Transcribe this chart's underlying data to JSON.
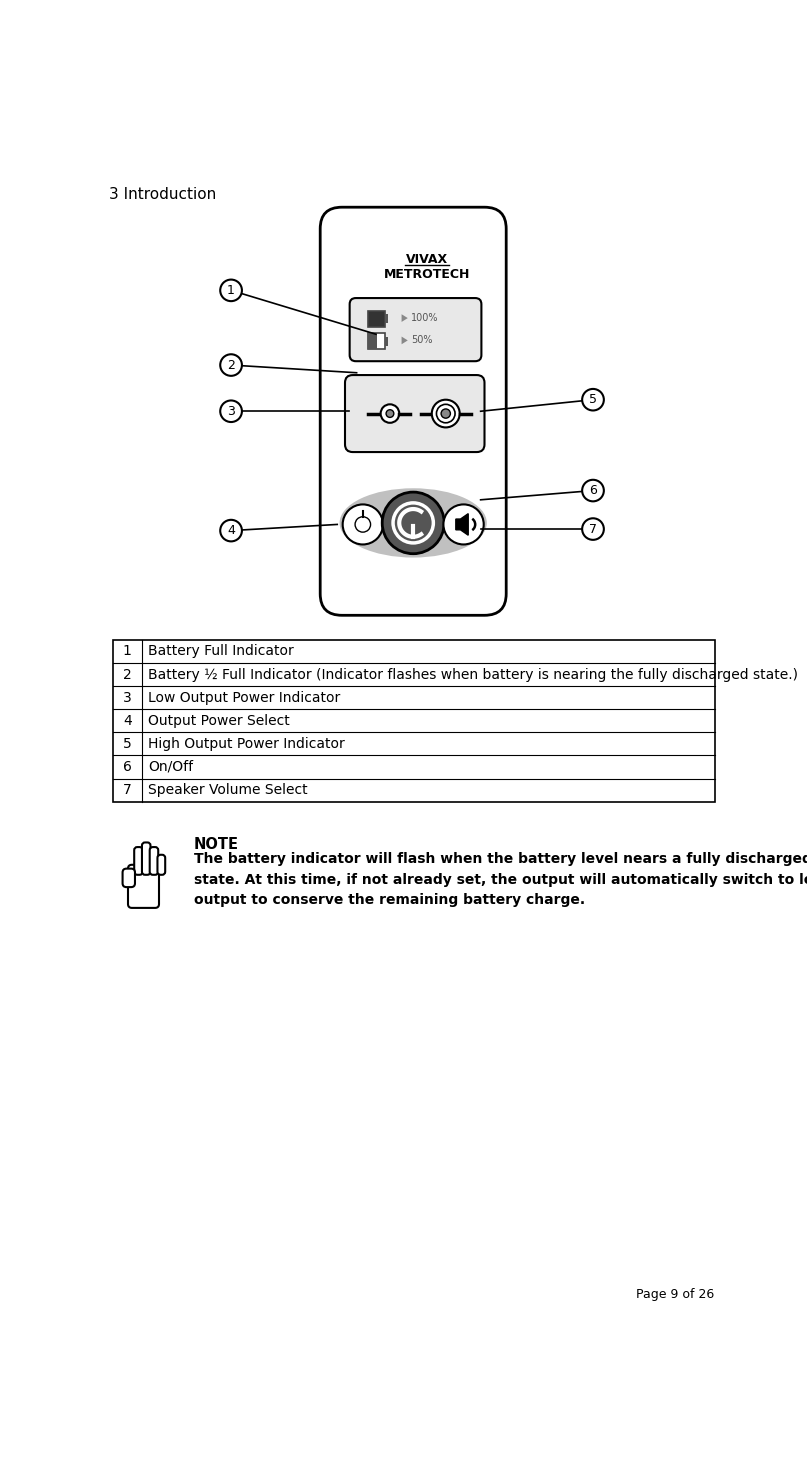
{
  "title": "3 Introduction",
  "page_label": "Page 9 of 26",
  "bg_color": "#ffffff",
  "title_fontsize": 11,
  "page_label_fontsize": 9,
  "table_rows": [
    [
      "1",
      "Battery Full Indicator"
    ],
    [
      "2",
      "Battery ½ Full Indicator (Indicator flashes when battery is nearing the fully discharged state.)"
    ],
    [
      "3",
      "Low Output Power Indicator"
    ],
    [
      "4",
      "Output Power Select"
    ],
    [
      "5",
      "High Output Power Indicator"
    ],
    [
      "6",
      "On/Off"
    ],
    [
      "7",
      "Speaker Volume Select"
    ]
  ],
  "note_title": "NOTE",
  "note_text": "The battery indicator will flash when the battery level nears a fully discharged\nstate. At this time, if not already set, the output will automatically switch to low\noutput to conserve the remaining battery charge.",
  "callouts": [
    [
      1,
      168,
      148,
      355,
      205
    ],
    [
      2,
      168,
      245,
      330,
      255
    ],
    [
      3,
      168,
      305,
      320,
      305
    ],
    [
      4,
      168,
      460,
      305,
      452
    ],
    [
      5,
      635,
      290,
      490,
      305
    ],
    [
      6,
      635,
      408,
      490,
      420
    ],
    [
      7,
      635,
      458,
      490,
      458
    ]
  ]
}
